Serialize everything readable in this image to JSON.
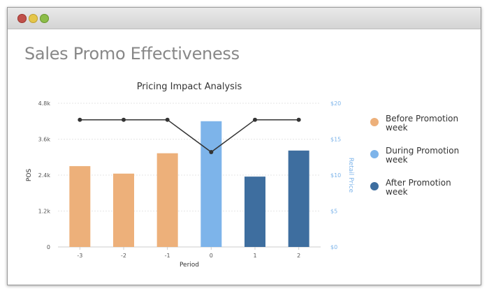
{
  "window": {
    "title_bar_buttons": [
      "close",
      "minimize",
      "maximize"
    ]
  },
  "page": {
    "title": "Sales Promo Effectiveness"
  },
  "chart_data": {
    "type": "bar",
    "title": "Pricing Impact Analysis",
    "xlabel": "Period",
    "ylabel": "POS",
    "y2label": "Retail Price",
    "categories": [
      "-3",
      "-2",
      "-1",
      "0",
      "1",
      "2"
    ],
    "values": [
      2700,
      2450,
      3130,
      4200,
      2350,
      3220
    ],
    "bar_groups": [
      "Before Promotion week",
      "Before Promotion week",
      "Before Promotion week",
      "During Promotion week",
      "After Promotion week",
      "After Promotion week"
    ],
    "line": {
      "name": "Retail Price",
      "values": [
        17.7,
        17.7,
        17.7,
        13.2,
        17.7,
        17.7
      ]
    },
    "ylim": [
      0,
      4800
    ],
    "y_ticks": [
      "0",
      "1.2k",
      "2.4k",
      "3.6k",
      "4.8k"
    ],
    "y_tick_values": [
      0,
      1200,
      2400,
      3600,
      4800
    ],
    "y2lim": [
      0,
      20
    ],
    "y2_ticks": [
      "$0",
      "$5",
      "$10",
      "$15",
      "$20"
    ],
    "y2_tick_values": [
      0,
      5,
      10,
      15,
      20
    ],
    "grid": true,
    "legend_position": "right",
    "legend": [
      {
        "label": "Before Promotion week",
        "color": "#EDB07A"
      },
      {
        "label": "During Promotion week",
        "color": "#7DB4EA"
      },
      {
        "label": "After Promotion week",
        "color": "#3E6E9F"
      }
    ],
    "colors": {
      "before": "#EDB07A",
      "during": "#7DB4EA",
      "after": "#3E6E9F",
      "line": "#333333",
      "right_axis": "#7DB4EA"
    }
  }
}
